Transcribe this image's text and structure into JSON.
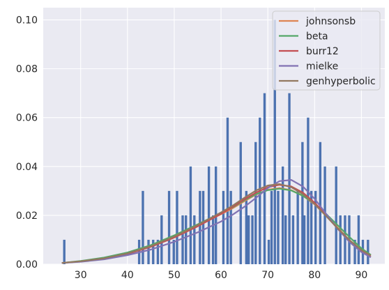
{
  "chart_data": {
    "type": "bar",
    "title": "",
    "xlabel": "",
    "ylabel": "",
    "xlim": [
      22,
      95
    ],
    "ylim": [
      0,
      0.105
    ],
    "grid": true,
    "legend_position": "top-right",
    "xticks": [
      30,
      40,
      50,
      60,
      70,
      80,
      90
    ],
    "xtick_labels": [
      "30",
      "40",
      "50",
      "60",
      "70",
      "80",
      "90"
    ],
    "yticks": [
      0,
      0.02,
      0.04,
      0.06,
      0.08,
      0.1
    ],
    "ytick_labels": [
      "0.00",
      "0.02",
      "0.04",
      "0.06",
      "0.08",
      "0.10"
    ],
    "bar_color": "#4c72b0",
    "background_color": "#eaeaf2",
    "bars": {
      "x": [
        26.5,
        42.5,
        43.3,
        44.5,
        45.5,
        46.5,
        47.3,
        48.9,
        49.9,
        50.6,
        51.8,
        52.5,
        53.5,
        54.3,
        55.5,
        56.2,
        57.4,
        58.3,
        58.9,
        60.5,
        61.4,
        62.1,
        64.2,
        65.4,
        65.9,
        66.7,
        67.4,
        68.3,
        69.3,
        70.2,
        70.8,
        71.5,
        72.2,
        73.2,
        73.8,
        74.6,
        75.4,
        76.4,
        77.4,
        77.8,
        78.6,
        79.3,
        80.2,
        81.2,
        82.2,
        84.6,
        85.5,
        86.5,
        87.4,
        88.6,
        89.4,
        90.3,
        91.4
      ],
      "height": [
        0.01,
        0.01,
        0.03,
        0.01,
        0.01,
        0.01,
        0.02,
        0.03,
        0.01,
        0.03,
        0.02,
        0.02,
        0.04,
        0.02,
        0.03,
        0.03,
        0.04,
        0.02,
        0.04,
        0.03,
        0.06,
        0.03,
        0.05,
        0.03,
        0.02,
        0.02,
        0.05,
        0.06,
        0.07,
        0.01,
        0.03,
        0.1,
        0.03,
        0.04,
        0.02,
        0.07,
        0.02,
        0.03,
        0.05,
        0.02,
        0.06,
        0.03,
        0.03,
        0.05,
        0.04,
        0.04,
        0.02,
        0.02,
        0.02,
        0.01,
        0.02,
        0.01,
        0.01
      ]
    },
    "series": [
      {
        "name": "johnsonsb",
        "color": "#dd8452",
        "x": [
          26,
          30,
          35,
          40,
          45,
          50,
          55,
          60,
          62.5,
          65,
          67.5,
          70,
          72.5,
          75,
          77.5,
          80,
          82.5,
          85,
          87.5,
          90,
          92
        ],
        "y": [
          0.0005,
          0.0012,
          0.0025,
          0.0045,
          0.0075,
          0.0113,
          0.0158,
          0.0205,
          0.0229,
          0.0258,
          0.0285,
          0.0305,
          0.0312,
          0.0303,
          0.028,
          0.0245,
          0.0198,
          0.0148,
          0.0098,
          0.0058,
          0.0035
        ]
      },
      {
        "name": "beta",
        "color": "#55a868",
        "x": [
          26,
          30,
          35,
          40,
          45,
          50,
          55,
          60,
          62.5,
          65,
          67.5,
          70,
          72.5,
          75,
          77.5,
          80,
          82.5,
          85,
          87.5,
          90,
          92
        ],
        "y": [
          0.0005,
          0.0013,
          0.0027,
          0.0048,
          0.0078,
          0.0118,
          0.0163,
          0.021,
          0.0233,
          0.0262,
          0.0287,
          0.0303,
          0.0309,
          0.0302,
          0.028,
          0.0248,
          0.0205,
          0.0158,
          0.011,
          0.0065,
          0.0038
        ]
      },
      {
        "name": "burr12",
        "color": "#c44e52",
        "x": [
          26,
          30,
          35,
          40,
          45,
          50,
          55,
          60,
          62.5,
          65,
          67.5,
          70,
          72.5,
          75,
          77.5,
          80,
          82.5,
          85,
          87.5,
          90,
          92
        ],
        "y": [
          0.0005,
          0.0011,
          0.0023,
          0.0042,
          0.0071,
          0.0109,
          0.0155,
          0.0206,
          0.0235,
          0.0265,
          0.0293,
          0.0315,
          0.0325,
          0.0318,
          0.0293,
          0.0252,
          0.02,
          0.0144,
          0.0092,
          0.0052,
          0.003
        ]
      },
      {
        "name": "mielke",
        "color": "#8172b3",
        "x": [
          26,
          30,
          35,
          40,
          45,
          50,
          55,
          60,
          62.5,
          65,
          67.5,
          70,
          72.5,
          75,
          77.5,
          80,
          82.5,
          85,
          87.5,
          90,
          92
        ],
        "y": [
          0.0005,
          0.001,
          0.002,
          0.0037,
          0.006,
          0.0092,
          0.013,
          0.0175,
          0.0203,
          0.0235,
          0.0272,
          0.0312,
          0.034,
          0.0345,
          0.0318,
          0.0268,
          0.0205,
          0.0143,
          0.009,
          0.005,
          0.0028
        ]
      },
      {
        "name": "genhyperbolic",
        "color": "#937860",
        "x": [
          26,
          30,
          35,
          40,
          45,
          50,
          55,
          60,
          62.5,
          65,
          67.5,
          70,
          72.5,
          75,
          77.5,
          80,
          82.5,
          85,
          87.5,
          90,
          92
        ],
        "y": [
          0.0005,
          0.0012,
          0.0024,
          0.0044,
          0.0074,
          0.0113,
          0.016,
          0.0212,
          0.024,
          0.0272,
          0.0302,
          0.0322,
          0.0328,
          0.0315,
          0.0287,
          0.0246,
          0.0196,
          0.0145,
          0.0097,
          0.0058,
          0.0035
        ]
      }
    ]
  }
}
